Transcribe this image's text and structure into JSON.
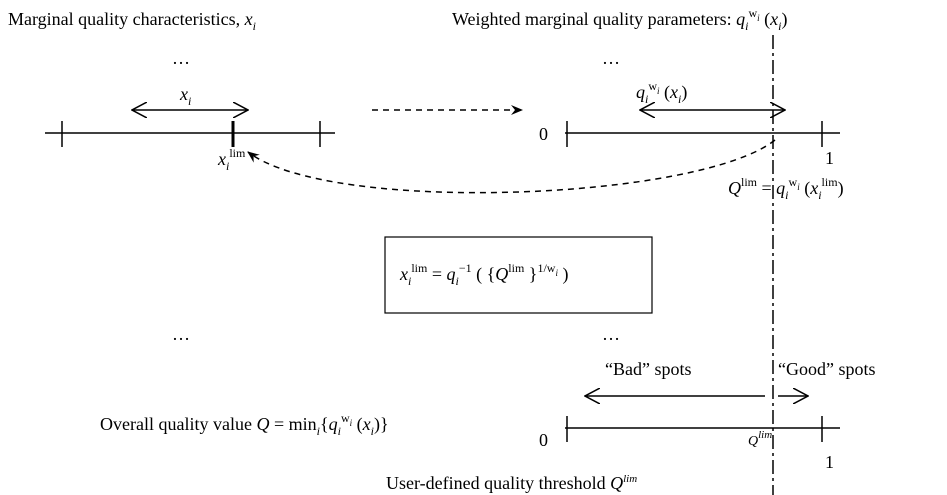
{
  "labels": [
    {
      "tokens": [
        {
          "text": "Marginal quality characteristics, ",
          "style": "norm"
        },
        {
          "text": "x",
          "style": "it"
        },
        {
          "text": "i",
          "style": "sub"
        }
      ]
    },
    {
      "tokens": [
        {
          "text": "Weighted marginal quality parameters: ",
          "style": "norm"
        },
        {
          "text": "q",
          "style": "it"
        },
        {
          "text": "i",
          "style": "sub"
        },
        {
          "text": "w",
          "style": "sup"
        },
        {
          "text": "i",
          "style": "supsub"
        },
        {
          "text": " (",
          "style": "norm"
        },
        {
          "text": "x",
          "style": "it"
        },
        {
          "text": "i",
          "style": "sub"
        },
        {
          "text": ")",
          "style": "norm"
        }
      ]
    },
    {
      "tokens": [
        {
          "text": "…",
          "style": "norm"
        }
      ]
    },
    {
      "tokens": [
        {
          "text": "…",
          "style": "norm"
        }
      ]
    },
    {
      "tokens": [
        {
          "text": "x",
          "style": "it"
        },
        {
          "text": "i",
          "style": "sub"
        }
      ]
    },
    {
      "tokens": [
        {
          "text": "x",
          "style": "it"
        },
        {
          "text": "i",
          "style": "sub"
        },
        {
          "text": "lim",
          "style": "sup"
        }
      ]
    },
    {
      "tokens": [
        {
          "text": "q",
          "style": "it"
        },
        {
          "text": "i",
          "style": "sub"
        },
        {
          "text": "w",
          "style": "sup"
        },
        {
          "text": "i",
          "style": "supsub"
        },
        {
          "text": " (",
          "style": "norm"
        },
        {
          "text": "x",
          "style": "it"
        },
        {
          "text": "i",
          "style": "sub"
        },
        {
          "text": ")",
          "style": "norm"
        }
      ]
    },
    {
      "tokens": [
        {
          "text": "0",
          "style": "norm"
        }
      ]
    },
    {
      "tokens": [
        {
          "text": "1",
          "style": "norm"
        }
      ]
    },
    {
      "tokens": [
        {
          "text": "Q",
          "style": "it"
        },
        {
          "text": "lim",
          "style": "sup"
        },
        {
          "text": " = ",
          "style": "norm"
        },
        {
          "text": "q",
          "style": "it"
        },
        {
          "text": "i",
          "style": "sub"
        },
        {
          "text": "w",
          "style": "sup"
        },
        {
          "text": "i",
          "style": "supsub"
        },
        {
          "text": " (",
          "style": "norm"
        },
        {
          "text": "x",
          "style": "it"
        },
        {
          "text": "i",
          "style": "sub"
        },
        {
          "text": "lim",
          "style": "sup"
        },
        {
          "text": ")",
          "style": "norm"
        }
      ]
    },
    {
      "tokens": [
        {
          "text": "x",
          "style": "it"
        },
        {
          "text": "i",
          "style": "sub"
        },
        {
          "text": "lim",
          "style": "sup"
        },
        {
          "text": " = ",
          "style": "norm"
        },
        {
          "text": "q",
          "style": "it"
        },
        {
          "text": "i",
          "style": "sub"
        },
        {
          "text": "−1",
          "style": "sup"
        },
        {
          "text": " ( {",
          "style": "norm"
        },
        {
          "text": "Q",
          "style": "it"
        },
        {
          "text": "lim",
          "style": "sup"
        },
        {
          "text": " }",
          "style": "norm"
        },
        {
          "text": "1/",
          "style": "sup"
        },
        {
          "text": "w",
          "style": "sup"
        },
        {
          "text": "i",
          "style": "supsub"
        },
        {
          "text": " )",
          "style": "norm"
        }
      ]
    },
    {
      "tokens": [
        {
          "text": "…",
          "style": "norm"
        }
      ]
    },
    {
      "tokens": [
        {
          "text": "…",
          "style": "norm"
        }
      ]
    },
    {
      "tokens": [
        {
          "text": "“Bad” spots",
          "style": "norm"
        }
      ]
    },
    {
      "tokens": [
        {
          "text": "“Good” spots",
          "style": "norm"
        }
      ]
    },
    {
      "tokens": [
        {
          "text": "Overall quality value ",
          "style": "norm"
        },
        {
          "text": "Q",
          "style": "it"
        },
        {
          "text": " = min",
          "style": "norm"
        },
        {
          "text": "i",
          "style": "sub"
        },
        {
          "text": "{",
          "style": "norm"
        },
        {
          "text": "q",
          "style": "it"
        },
        {
          "text": "i",
          "style": "sub"
        },
        {
          "text": "w",
          "style": "sup"
        },
        {
          "text": "i",
          "style": "supsub"
        },
        {
          "text": " (",
          "style": "norm"
        },
        {
          "text": "x",
          "style": "it"
        },
        {
          "text": "i",
          "style": "sub"
        },
        {
          "text": ")}",
          "style": "norm"
        }
      ]
    },
    {
      "tokens": [
        {
          "text": "0",
          "style": "norm"
        }
      ]
    },
    {
      "tokens": [
        {
          "text": "Q",
          "style": "smallit"
        },
        {
          "text": "lim",
          "style": "supit"
        }
      ]
    },
    {
      "tokens": [
        {
          "text": "1",
          "style": "norm"
        }
      ]
    },
    {
      "tokens": [
        {
          "text": "User-defined quality threshold ",
          "style": "norm"
        },
        {
          "text": "Q",
          "style": "it"
        },
        {
          "text": "lim",
          "style": "supit"
        }
      ]
    }
  ]
}
